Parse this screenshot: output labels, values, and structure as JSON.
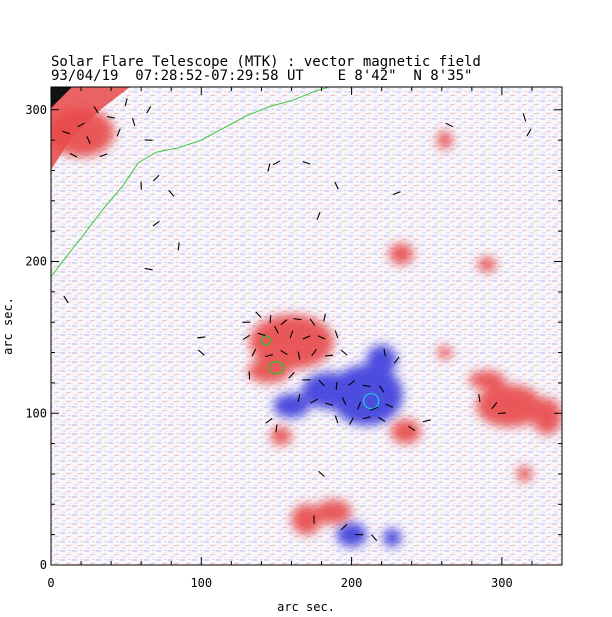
{
  "header": {
    "title_line1": "Solar Flare Telescope (MTK) : vector magnetic field",
    "title_line2": "93/04/19  07:28:52-07:29:58 UT    E 8'42\"  N 8'35\""
  },
  "colors": {
    "positive": "#e84a4a",
    "negative": "#3a3adc",
    "limb_contour": "#3cc83c",
    "contour_green": "#2fbf2f",
    "contour_cyan": "#20c0e0",
    "vector": "#000000"
  },
  "chart_data": {
    "type": "magnetogram",
    "title": "Solar Flare Telescope (MTK) : vector magnetic field",
    "subtitle": "93/04/19  07:28:52-07:29:58 UT    E 8'42\"  N 8'35\"",
    "xlabel": "arc sec.",
    "ylabel": "arc sec.",
    "xlim": [
      0,
      340
    ],
    "ylim": [
      0,
      315
    ],
    "x_ticks": [
      0,
      100,
      200,
      300
    ],
    "y_ticks": [
      0,
      100,
      200,
      300
    ],
    "positive_regions": [
      {
        "x": 160,
        "y": 147,
        "rx": 28,
        "ry": 18
      },
      {
        "x": 145,
        "y": 128,
        "rx": 14,
        "ry": 8
      },
      {
        "x": 305,
        "y": 105,
        "rx": 22,
        "ry": 14
      },
      {
        "x": 330,
        "y": 98,
        "rx": 10,
        "ry": 12
      },
      {
        "x": 290,
        "y": 122,
        "rx": 12,
        "ry": 6
      },
      {
        "x": 236,
        "y": 88,
        "rx": 10,
        "ry": 8
      },
      {
        "x": 153,
        "y": 85,
        "rx": 7,
        "ry": 6
      },
      {
        "x": 188,
        "y": 35,
        "rx": 12,
        "ry": 8
      },
      {
        "x": 170,
        "y": 30,
        "rx": 10,
        "ry": 10
      },
      {
        "x": 233,
        "y": 205,
        "rx": 8,
        "ry": 7
      },
      {
        "x": 290,
        "y": 198,
        "rx": 6,
        "ry": 5
      },
      {
        "x": 262,
        "y": 140,
        "rx": 5,
        "ry": 4
      },
      {
        "x": 315,
        "y": 60,
        "rx": 5,
        "ry": 5
      },
      {
        "x": 262,
        "y": 280,
        "rx": 5,
        "ry": 6
      },
      {
        "x": 20,
        "y": 285,
        "rx": 22,
        "ry": 16
      }
    ],
    "negative_regions": [
      {
        "x": 210,
        "y": 112,
        "rx": 24,
        "ry": 20
      },
      {
        "x": 185,
        "y": 115,
        "rx": 18,
        "ry": 12
      },
      {
        "x": 160,
        "y": 105,
        "rx": 12,
        "ry": 8
      },
      {
        "x": 220,
        "y": 135,
        "rx": 10,
        "ry": 10
      },
      {
        "x": 200,
        "y": 20,
        "rx": 10,
        "ry": 8
      },
      {
        "x": 227,
        "y": 18,
        "rx": 6,
        "ry": 6
      }
    ],
    "contours": [
      {
        "color": "green",
        "x": 150,
        "y": 130,
        "rx": 5,
        "ry": 4
      },
      {
        "color": "green",
        "x": 143,
        "y": 148,
        "rx": 3,
        "ry": 3
      },
      {
        "color": "cyan",
        "x": 213,
        "y": 108,
        "rx": 5,
        "ry": 5
      }
    ],
    "limb": [
      [
        0,
        190
      ],
      [
        10,
        203
      ],
      [
        22,
        218
      ],
      [
        35,
        235
      ],
      [
        48,
        250
      ],
      [
        58,
        265
      ],
      [
        70,
        272
      ],
      [
        85,
        275
      ],
      [
        100,
        280
      ],
      [
        115,
        288
      ],
      [
        130,
        296
      ],
      [
        145,
        302
      ],
      [
        160,
        306
      ],
      [
        175,
        312
      ],
      [
        185,
        315
      ]
    ],
    "vectors": [
      {
        "x": 130,
        "y": 160
      },
      {
        "x": 138,
        "y": 165
      },
      {
        "x": 146,
        "y": 162
      },
      {
        "x": 155,
        "y": 160
      },
      {
        "x": 164,
        "y": 162
      },
      {
        "x": 174,
        "y": 160
      },
      {
        "x": 182,
        "y": 163
      },
      {
        "x": 130,
        "y": 150
      },
      {
        "x": 140,
        "y": 152
      },
      {
        "x": 150,
        "y": 155
      },
      {
        "x": 160,
        "y": 152
      },
      {
        "x": 170,
        "y": 150
      },
      {
        "x": 180,
        "y": 150
      },
      {
        "x": 190,
        "y": 152
      },
      {
        "x": 135,
        "y": 140
      },
      {
        "x": 145,
        "y": 138
      },
      {
        "x": 155,
        "y": 140
      },
      {
        "x": 165,
        "y": 138
      },
      {
        "x": 175,
        "y": 140
      },
      {
        "x": 185,
        "y": 138
      },
      {
        "x": 195,
        "y": 140
      },
      {
        "x": 132,
        "y": 125
      },
      {
        "x": 160,
        "y": 125
      },
      {
        "x": 170,
        "y": 122
      },
      {
        "x": 180,
        "y": 120
      },
      {
        "x": 190,
        "y": 118
      },
      {
        "x": 200,
        "y": 120
      },
      {
        "x": 210,
        "y": 118
      },
      {
        "x": 220,
        "y": 116
      },
      {
        "x": 165,
        "y": 110
      },
      {
        "x": 175,
        "y": 108
      },
      {
        "x": 185,
        "y": 106
      },
      {
        "x": 195,
        "y": 108
      },
      {
        "x": 205,
        "y": 105
      },
      {
        "x": 215,
        "y": 103
      },
      {
        "x": 225,
        "y": 105
      },
      {
        "x": 190,
        "y": 96
      },
      {
        "x": 200,
        "y": 95
      },
      {
        "x": 210,
        "y": 97
      },
      {
        "x": 220,
        "y": 96
      },
      {
        "x": 222,
        "y": 140
      },
      {
        "x": 230,
        "y": 135
      },
      {
        "x": 100,
        "y": 150
      },
      {
        "x": 100,
        "y": 140
      },
      {
        "x": 60,
        "y": 250
      },
      {
        "x": 70,
        "y": 255
      },
      {
        "x": 65,
        "y": 280
      },
      {
        "x": 80,
        "y": 245
      },
      {
        "x": 85,
        "y": 210
      },
      {
        "x": 70,
        "y": 225
      },
      {
        "x": 65,
        "y": 195
      },
      {
        "x": 10,
        "y": 175
      },
      {
        "x": 145,
        "y": 262
      },
      {
        "x": 150,
        "y": 265
      },
      {
        "x": 170,
        "y": 265
      },
      {
        "x": 190,
        "y": 250
      },
      {
        "x": 178,
        "y": 230
      },
      {
        "x": 230,
        "y": 245
      },
      {
        "x": 265,
        "y": 290
      },
      {
        "x": 315,
        "y": 295
      },
      {
        "x": 318,
        "y": 285
      },
      {
        "x": 250,
        "y": 95
      },
      {
        "x": 240,
        "y": 90
      },
      {
        "x": 285,
        "y": 110
      },
      {
        "x": 295,
        "y": 105
      },
      {
        "x": 300,
        "y": 100
      },
      {
        "x": 180,
        "y": 60
      },
      {
        "x": 175,
        "y": 30
      },
      {
        "x": 195,
        "y": 25
      },
      {
        "x": 205,
        "y": 20
      },
      {
        "x": 215,
        "y": 18
      },
      {
        "x": 150,
        "y": 90
      },
      {
        "x": 145,
        "y": 95
      },
      {
        "x": 40,
        "y": 295
      },
      {
        "x": 30,
        "y": 300
      },
      {
        "x": 50,
        "y": 305
      },
      {
        "x": 20,
        "y": 290
      },
      {
        "x": 10,
        "y": 285
      },
      {
        "x": 25,
        "y": 280
      },
      {
        "x": 45,
        "y": 285
      },
      {
        "x": 35,
        "y": 270
      },
      {
        "x": 15,
        "y": 270
      },
      {
        "x": 55,
        "y": 292
      },
      {
        "x": 65,
        "y": 300
      }
    ]
  }
}
